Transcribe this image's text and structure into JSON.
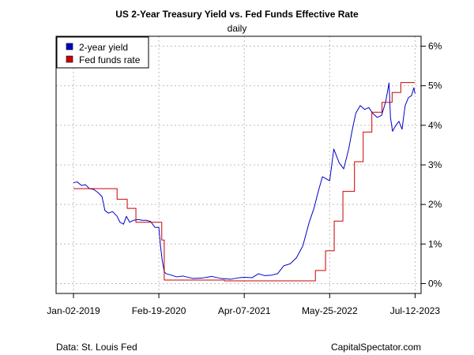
{
  "chart_data": {
    "type": "line",
    "title": "US 2-Year Treasury Yield vs. Fed Funds Effective Rate",
    "subtitle": "daily",
    "x_ticks": [
      "Jan-02-2019",
      "Feb-19-2020",
      "Apr-07-2021",
      "May-25-2022",
      "Jul-12-2023"
    ],
    "y_ticks": [
      "0%",
      "1%",
      "2%",
      "3%",
      "4%",
      "5%",
      "6%"
    ],
    "ylim": [
      -0.25,
      6.25
    ],
    "xlim": [
      "2018-10-10",
      "2023-08-10"
    ],
    "y_axis_side": "right",
    "grid": true,
    "legend_position": "top-left",
    "series": [
      {
        "name": "2-year yield",
        "color": "#0000cc",
        "x": [
          "2019-01-02",
          "2019-01-20",
          "2019-02-10",
          "2019-03-01",
          "2019-03-20",
          "2019-04-10",
          "2019-05-01",
          "2019-05-20",
          "2019-06-03",
          "2019-06-20",
          "2019-07-10",
          "2019-08-01",
          "2019-08-15",
          "2019-09-01",
          "2019-09-15",
          "2019-10-01",
          "2019-10-20",
          "2019-11-10",
          "2019-12-01",
          "2019-12-20",
          "2020-01-10",
          "2020-01-31",
          "2020-02-19",
          "2020-02-28",
          "2020-03-06",
          "2020-03-16",
          "2020-03-25",
          "2020-04-15",
          "2020-05-15",
          "2020-06-15",
          "2020-08-01",
          "2020-09-15",
          "2020-11-01",
          "2020-12-15",
          "2021-02-01",
          "2021-03-15",
          "2021-04-07",
          "2021-05-15",
          "2021-06-15",
          "2021-07-15",
          "2021-08-15",
          "2021-09-15",
          "2021-10-15",
          "2021-11-15",
          "2021-12-15",
          "2022-01-15",
          "2022-02-15",
          "2022-03-10",
          "2022-04-01",
          "2022-04-20",
          "2022-05-25",
          "2022-06-14",
          "2022-07-10",
          "2022-08-01",
          "2022-08-25",
          "2022-09-10",
          "2022-09-28",
          "2022-10-20",
          "2022-11-10",
          "2022-11-30",
          "2022-12-20",
          "2023-01-10",
          "2023-01-31",
          "2023-02-20",
          "2023-03-08",
          "2023-03-15",
          "2023-03-25",
          "2023-04-10",
          "2023-04-25",
          "2023-05-10",
          "2023-05-25",
          "2023-06-10",
          "2023-06-25",
          "2023-07-06",
          "2023-07-12"
        ],
        "values": [
          2.55,
          2.57,
          2.48,
          2.5,
          2.4,
          2.38,
          2.3,
          2.2,
          1.85,
          1.78,
          1.82,
          1.7,
          1.55,
          1.5,
          1.7,
          1.55,
          1.6,
          1.62,
          1.6,
          1.6,
          1.57,
          1.42,
          1.42,
          0.9,
          0.6,
          0.3,
          0.25,
          0.22,
          0.17,
          0.19,
          0.13,
          0.14,
          0.18,
          0.13,
          0.11,
          0.15,
          0.16,
          0.15,
          0.25,
          0.2,
          0.21,
          0.25,
          0.45,
          0.5,
          0.65,
          0.95,
          1.55,
          1.9,
          2.35,
          2.7,
          2.6,
          3.4,
          3.05,
          2.9,
          3.4,
          3.85,
          4.3,
          4.5,
          4.4,
          4.45,
          4.3,
          4.2,
          4.25,
          4.6,
          5.07,
          4.2,
          3.85,
          4.0,
          4.1,
          3.9,
          4.5,
          4.7,
          4.75,
          4.95,
          4.8
        ]
      },
      {
        "name": "Fed funds rate",
        "color": "#cc0000",
        "step": true,
        "x": [
          "2019-01-02",
          "2019-08-01",
          "2019-09-19",
          "2019-10-31",
          "2020-03-04",
          "2020-03-16",
          "2021-01-01",
          "2022-03-17",
          "2022-05-05",
          "2022-06-16",
          "2022-07-28",
          "2022-09-22",
          "2022-11-03",
          "2022-12-15",
          "2023-02-02",
          "2023-03-23",
          "2023-05-04",
          "2023-07-12"
        ],
        "values": [
          2.4,
          2.13,
          1.9,
          1.55,
          1.1,
          0.09,
          0.07,
          0.33,
          0.83,
          1.58,
          2.33,
          3.08,
          3.83,
          4.33,
          4.58,
          4.83,
          5.08,
          5.08
        ]
      }
    ]
  },
  "footer": {
    "source": "Data: St. Louis Fed",
    "credit": "CapitalSpectator.com"
  }
}
